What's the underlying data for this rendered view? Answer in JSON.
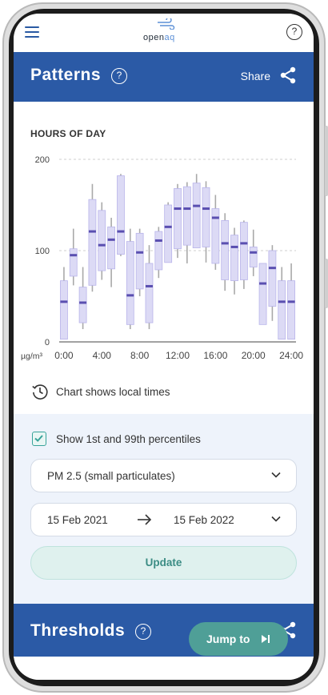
{
  "app": {
    "logo_prefix": "open",
    "logo_suffix": "aq",
    "help_symbol": "?"
  },
  "patterns": {
    "title": "Patterns",
    "help_symbol": "?",
    "share_label": "Share",
    "chart_title": "HOURS OF DAY",
    "local_times_note": "Chart shows local times"
  },
  "controls": {
    "percentile_label": "Show 1st and 99th percentiles",
    "percentile_checked": true,
    "pollutant_value": "PM 2.5 (small particulates)",
    "date_start": "15 Feb 2021",
    "date_end": "15 Feb 2022",
    "update_label": "Update"
  },
  "thresholds": {
    "title": "Thresholds",
    "help_symbol": "?"
  },
  "jump": {
    "label": "Jump to"
  },
  "colors": {
    "brand_blue": "#2b5aa6",
    "accent_teal": "#4f9f97",
    "box_fill": "#dcdaf5",
    "box_stroke": "#b9b5ea",
    "median": "#5a4fb0",
    "whisker": "#a9a9a9"
  },
  "chart_data": {
    "type": "box",
    "title": "HOURS OF DAY",
    "unit_label": "µg/m³",
    "ylim": [
      0,
      200
    ],
    "yticks": [
      0,
      100,
      200
    ],
    "xlim": [
      -0.5,
      24.5
    ],
    "xticks": [
      0,
      4,
      8,
      12,
      16,
      20,
      24
    ],
    "xtick_labels": [
      "0:00",
      "4:00",
      "8:00",
      "12:00",
      "16:00",
      "20:00",
      "24:00"
    ],
    "grid": "horizontal-dashed",
    "boxes": [
      {
        "hour": 0,
        "whisker_low": 3,
        "q1": 3,
        "median": 44,
        "q3": 67,
        "whisker_high": 82
      },
      {
        "hour": 1,
        "whisker_low": 62,
        "q1": 72,
        "median": 95,
        "q3": 102,
        "whisker_high": 124
      },
      {
        "hour": 2,
        "whisker_low": 14,
        "q1": 21,
        "median": 43,
        "q3": 60,
        "whisker_high": 82
      },
      {
        "hour": 3,
        "whisker_low": 55,
        "q1": 62,
        "median": 121,
        "q3": 156,
        "whisker_high": 173
      },
      {
        "hour": 4,
        "whisker_low": 68,
        "q1": 78,
        "median": 106,
        "q3": 144,
        "whisker_high": 153
      },
      {
        "hour": 5,
        "whisker_low": 60,
        "q1": 80,
        "median": 112,
        "q3": 126,
        "whisker_high": 136
      },
      {
        "hour": 6,
        "whisker_low": 94,
        "q1": 96,
        "median": 121,
        "q3": 182,
        "whisker_high": 184
      },
      {
        "hour": 7,
        "whisker_low": 14,
        "q1": 19,
        "median": 51,
        "q3": 110,
        "whisker_high": 124
      },
      {
        "hour": 8,
        "whisker_low": 50,
        "q1": 58,
        "median": 98,
        "q3": 119,
        "whisker_high": 124
      },
      {
        "hour": 9,
        "whisker_low": 14,
        "q1": 21,
        "median": 61,
        "q3": 86,
        "whisker_high": 106
      },
      {
        "hour": 10,
        "whisker_low": 70,
        "q1": 79,
        "median": 111,
        "q3": 121,
        "whisker_high": 126
      },
      {
        "hour": 11,
        "whisker_low": 87,
        "q1": 87,
        "median": 126,
        "q3": 150,
        "whisker_high": 153
      },
      {
        "hour": 12,
        "whisker_low": 92,
        "q1": 102,
        "median": 146,
        "q3": 168,
        "whisker_high": 173
      },
      {
        "hour": 13,
        "whisker_low": 86,
        "q1": 106,
        "median": 146,
        "q3": 170,
        "whisker_high": 175
      },
      {
        "hour": 14,
        "whisker_low": 103,
        "q1": 103,
        "median": 149,
        "q3": 174,
        "whisker_high": 184
      },
      {
        "hour": 15,
        "whisker_low": 87,
        "q1": 104,
        "median": 146,
        "q3": 169,
        "whisker_high": 176
      },
      {
        "hour": 16,
        "whisker_low": 79,
        "q1": 86,
        "median": 136,
        "q3": 146,
        "whisker_high": 161
      },
      {
        "hour": 17,
        "whisker_low": 56,
        "q1": 68,
        "median": 108,
        "q3": 133,
        "whisker_high": 141
      },
      {
        "hour": 18,
        "whisker_low": 52,
        "q1": 67,
        "median": 104,
        "q3": 117,
        "whisker_high": 125
      },
      {
        "hour": 19,
        "whisker_low": 58,
        "q1": 68,
        "median": 108,
        "q3": 131,
        "whisker_high": 133
      },
      {
        "hour": 20,
        "whisker_low": 72,
        "q1": 82,
        "median": 98,
        "q3": 104,
        "whisker_high": 123
      },
      {
        "hour": 21,
        "whisker_low": 19,
        "q1": 19,
        "median": 64,
        "q3": 86,
        "whisker_high": 86
      },
      {
        "hour": 22,
        "whisker_low": 23,
        "q1": 39,
        "median": 81,
        "q3": 100,
        "whisker_high": 106
      },
      {
        "hour": 23,
        "whisker_low": 3,
        "q1": 3,
        "median": 44,
        "q3": 67,
        "whisker_high": 82
      },
      {
        "hour": 24,
        "whisker_low": 3,
        "q1": 3,
        "median": 44,
        "q3": 67,
        "whisker_high": 86
      }
    ]
  }
}
